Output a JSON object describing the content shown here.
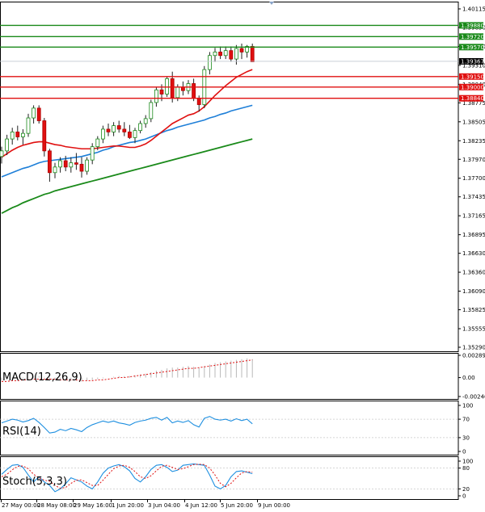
{
  "chart_data": {
    "type": "candlestick",
    "main": {
      "y_ticks": [
        "1.40115",
        "1.39850",
        "1.39580",
        "1.39310",
        "1.39040",
        "1.38775",
        "1.38505",
        "1.38235",
        "1.37970",
        "1.37700",
        "1.37435",
        "1.37165",
        "1.36895",
        "1.36630",
        "1.36360",
        "1.36090",
        "1.35825",
        "1.35555",
        "1.35290"
      ],
      "ylim": [
        1.3529,
        1.40115
      ],
      "current_price": "1.39367",
      "levels": [
        {
          "value": 1.3988,
          "label": "1.39880",
          "color": "#1a8a1a"
        },
        {
          "value": 1.3972,
          "label": "1.39720",
          "color": "#1a8a1a"
        },
        {
          "value": 1.3957,
          "label": "1.39570",
          "color": "#1a8a1a"
        },
        {
          "value": 1.3915,
          "label": "1.39150",
          "color": "#e01010"
        },
        {
          "value": 1.39,
          "label": "1.39000",
          "color": "#e01010"
        },
        {
          "value": 1.3884,
          "label": "1.38840",
          "color": "#e01010"
        }
      ],
      "candles": [
        [
          1.3801,
          1.3815,
          1.3791,
          1.3809
        ],
        [
          1.3809,
          1.3832,
          1.3803,
          1.3826
        ],
        [
          1.3826,
          1.3842,
          1.3818,
          1.3836
        ],
        [
          1.3836,
          1.3845,
          1.3824,
          1.3829
        ],
        [
          1.3829,
          1.384,
          1.3818,
          1.3834
        ],
        [
          1.3834,
          1.3862,
          1.3829,
          1.3856
        ],
        [
          1.3856,
          1.3874,
          1.3848,
          1.387
        ],
        [
          1.387,
          1.3874,
          1.3848,
          1.3852
        ],
        [
          1.3852,
          1.3856,
          1.3801,
          1.3809
        ],
        [
          1.3809,
          1.3812,
          1.3765,
          1.3778
        ],
        [
          1.3778,
          1.3792,
          1.377,
          1.3786
        ],
        [
          1.3786,
          1.38,
          1.3778,
          1.3795
        ],
        [
          1.3795,
          1.3802,
          1.378,
          1.3786
        ],
        [
          1.3786,
          1.38,
          1.3778,
          1.3792
        ],
        [
          1.3792,
          1.3806,
          1.3782,
          1.379
        ],
        [
          1.379,
          1.38,
          1.3771,
          1.378
        ],
        [
          1.378,
          1.38,
          1.3775,
          1.3796
        ],
        [
          1.3796,
          1.382,
          1.379,
          1.3815
        ],
        [
          1.3815,
          1.383,
          1.381,
          1.3826
        ],
        [
          1.3826,
          1.3845,
          1.382,
          1.384
        ],
        [
          1.384,
          1.3848,
          1.383,
          1.3836
        ],
        [
          1.3836,
          1.385,
          1.383,
          1.3845
        ],
        [
          1.3845,
          1.3852,
          1.3835,
          1.384
        ],
        [
          1.384,
          1.385,
          1.383,
          1.3836
        ],
        [
          1.3836,
          1.3846,
          1.3826,
          1.3828
        ],
        [
          1.3828,
          1.3842,
          1.382,
          1.3838
        ],
        [
          1.3838,
          1.3852,
          1.3834,
          1.3848
        ],
        [
          1.3848,
          1.386,
          1.3842,
          1.3855
        ],
        [
          1.3855,
          1.3882,
          1.385,
          1.3878
        ],
        [
          1.3878,
          1.39,
          1.3872,
          1.3896
        ],
        [
          1.3896,
          1.3904,
          1.388,
          1.389
        ],
        [
          1.389,
          1.3915,
          1.3886,
          1.3912
        ],
        [
          1.3912,
          1.3922,
          1.3878,
          1.3885
        ],
        [
          1.3885,
          1.3904,
          1.388,
          1.39
        ],
        [
          1.39,
          1.3908,
          1.3888,
          1.3895
        ],
        [
          1.3895,
          1.391,
          1.389,
          1.3905
        ],
        [
          1.3905,
          1.3912,
          1.388,
          1.3884
        ],
        [
          1.3884,
          1.3888,
          1.3865,
          1.3875
        ],
        [
          1.3875,
          1.393,
          1.387,
          1.3925
        ],
        [
          1.3925,
          1.395,
          1.3918,
          1.3945
        ],
        [
          1.3945,
          1.3956,
          1.3936,
          1.395
        ],
        [
          1.395,
          1.3958,
          1.394,
          1.3945
        ],
        [
          1.3945,
          1.3958,
          1.394,
          1.3952
        ],
        [
          1.3952,
          1.3958,
          1.3936,
          1.394
        ],
        [
          1.394,
          1.396,
          1.3932,
          1.3955
        ],
        [
          1.3955,
          1.3962,
          1.394,
          1.395
        ],
        [
          1.395,
          1.396,
          1.3942,
          1.3958
        ],
        [
          1.3958,
          1.3962,
          1.3938,
          1.3936
        ]
      ],
      "ma_red": [
        1.38,
        1.3805,
        1.381,
        1.3814,
        1.3817,
        1.3819,
        1.3821,
        1.3822,
        1.3822,
        1.382,
        1.3818,
        1.3817,
        1.3815,
        1.3814,
        1.3813,
        1.3812,
        1.3812,
        1.3812,
        1.3813,
        1.3814,
        1.3815,
        1.3816,
        1.3816,
        1.3815,
        1.3814,
        1.3814,
        1.3816,
        1.3819,
        1.3824,
        1.383,
        1.3836,
        1.3842,
        1.3848,
        1.3852,
        1.3856,
        1.386,
        1.3862,
        1.3866,
        1.3872,
        1.388,
        1.3888,
        1.3895,
        1.3902,
        1.3908,
        1.3914,
        1.3918,
        1.3922,
        1.3925
      ],
      "ma_blue": [
        1.3772,
        1.3775,
        1.3778,
        1.3781,
        1.3784,
        1.3786,
        1.3789,
        1.3792,
        1.3794,
        1.3795,
        1.3796,
        1.3797,
        1.3798,
        1.3799,
        1.38,
        1.3801,
        1.3803,
        1.3805,
        1.3807,
        1.381,
        1.3812,
        1.3815,
        1.3817,
        1.3819,
        1.3821,
        1.3822,
        1.3824,
        1.3826,
        1.3829,
        1.3832,
        1.3835,
        1.3838,
        1.384,
        1.3843,
        1.3845,
        1.3847,
        1.3849,
        1.3851,
        1.3853,
        1.3856,
        1.3858,
        1.3861,
        1.3863,
        1.3866,
        1.3868,
        1.387,
        1.3872,
        1.3874
      ],
      "ma_green": [
        1.372,
        1.3724,
        1.3728,
        1.3731,
        1.3735,
        1.3738,
        1.3741,
        1.3744,
        1.3747,
        1.3749,
        1.3752,
        1.3754,
        1.3756,
        1.3758,
        1.376,
        1.3762,
        1.3764,
        1.3766,
        1.3768,
        1.377,
        1.3772,
        1.3774,
        1.3776,
        1.3778,
        1.378,
        1.3782,
        1.3784,
        1.3786,
        1.3788,
        1.379,
        1.3792,
        1.3794,
        1.3796,
        1.3798,
        1.38,
        1.3802,
        1.3804,
        1.3806,
        1.3808,
        1.381,
        1.3812,
        1.3814,
        1.3816,
        1.3818,
        1.382,
        1.3822,
        1.3824,
        1.3826
      ]
    },
    "x_labels": [
      "27 May 00:00",
      "28 May 08:00",
      "29 May 16:00",
      "1 Jun 20:00",
      "3 Jun 04:00",
      "4 Jun 12:00",
      "5 Jun 20:00",
      "9 Jun 00:00"
    ],
    "macd": {
      "label": "MACD(12,26,9)",
      "y_ticks": [
        "0.002897",
        "0.00",
        "-0.002464"
      ],
      "ylim": [
        -0.002464,
        0.002897
      ],
      "hist": [
        -0.0004,
        -0.0003,
        -0.0002,
        -0.0001,
        -0.0001,
        0.0,
        0.0001,
        0.0002,
        0.0001,
        -0.0002,
        -0.0003,
        -0.0004,
        -0.0004,
        -0.0004,
        -0.0004,
        -0.0005,
        -0.0004,
        -0.0003,
        -0.0002,
        -0.0001,
        0.0,
        0.0001,
        0.0002,
        0.0002,
        0.0002,
        0.0003,
        0.0004,
        0.0005,
        0.0007,
        0.0009,
        0.001,
        0.0012,
        0.0013,
        0.0013,
        0.0014,
        0.0015,
        0.0014,
        0.0013,
        0.0015,
        0.0017,
        0.0019,
        0.002,
        0.0021,
        0.0022,
        0.0023,
        0.0024,
        0.0025,
        0.0024
      ],
      "signal": [
        -0.0005,
        -0.0005,
        -0.0004,
        -0.0004,
        -0.0003,
        -0.0003,
        -0.0002,
        -0.0002,
        -0.0002,
        -0.0002,
        -0.0002,
        -0.0003,
        -0.0003,
        -0.0003,
        -0.0003,
        -0.0004,
        -0.0004,
        -0.0004,
        -0.0003,
        -0.0003,
        -0.0002,
        -0.0001,
        0.0,
        0.0,
        0.0001,
        0.0002,
        0.0003,
        0.0004,
        0.0005,
        0.0006,
        0.0007,
        0.0008,
        0.0009,
        0.001,
        0.0011,
        0.0012,
        0.0012,
        0.0013,
        0.0014,
        0.0015,
        0.0016,
        0.0017,
        0.0018,
        0.0019,
        0.002,
        0.0021,
        0.0022,
        0.0023
      ]
    },
    "rsi": {
      "label": "RSI(14)",
      "y_ticks": [
        "100",
        "70",
        "30",
        "0"
      ],
      "ylim": [
        0,
        100
      ],
      "values": [
        62,
        66,
        70,
        68,
        64,
        67,
        72,
        63,
        52,
        40,
        42,
        48,
        45,
        50,
        47,
        43,
        52,
        58,
        62,
        66,
        63,
        66,
        62,
        60,
        57,
        63,
        66,
        68,
        72,
        74,
        68,
        74,
        62,
        66,
        63,
        67,
        58,
        53,
        72,
        76,
        70,
        68,
        70,
        66,
        71,
        67,
        70,
        60
      ]
    },
    "stoch": {
      "label": "Stoch(5,3,3)",
      "y_ticks": [
        "100",
        "80",
        "20",
        "0"
      ],
      "ylim": [
        0,
        100
      ],
      "k": [
        62,
        76,
        88,
        90,
        82,
        60,
        40,
        55,
        40,
        30,
        12,
        20,
        35,
        52,
        46,
        40,
        28,
        20,
        40,
        65,
        80,
        86,
        90,
        84,
        72,
        50,
        40,
        55,
        76,
        88,
        90,
        82,
        70,
        74,
        88,
        90,
        92,
        90,
        88,
        60,
        28,
        20,
        30,
        55,
        70,
        72,
        68,
        64
      ],
      "d": [
        55,
        62,
        75,
        85,
        86,
        78,
        62,
        52,
        45,
        42,
        30,
        22,
        24,
        36,
        45,
        46,
        38,
        30,
        30,
        45,
        62,
        78,
        86,
        88,
        82,
        70,
        55,
        50,
        58,
        72,
        85,
        88,
        82,
        76,
        78,
        84,
        90,
        91,
        90,
        80,
        60,
        36,
        26,
        36,
        52,
        66,
        70,
        68
      ]
    }
  }
}
